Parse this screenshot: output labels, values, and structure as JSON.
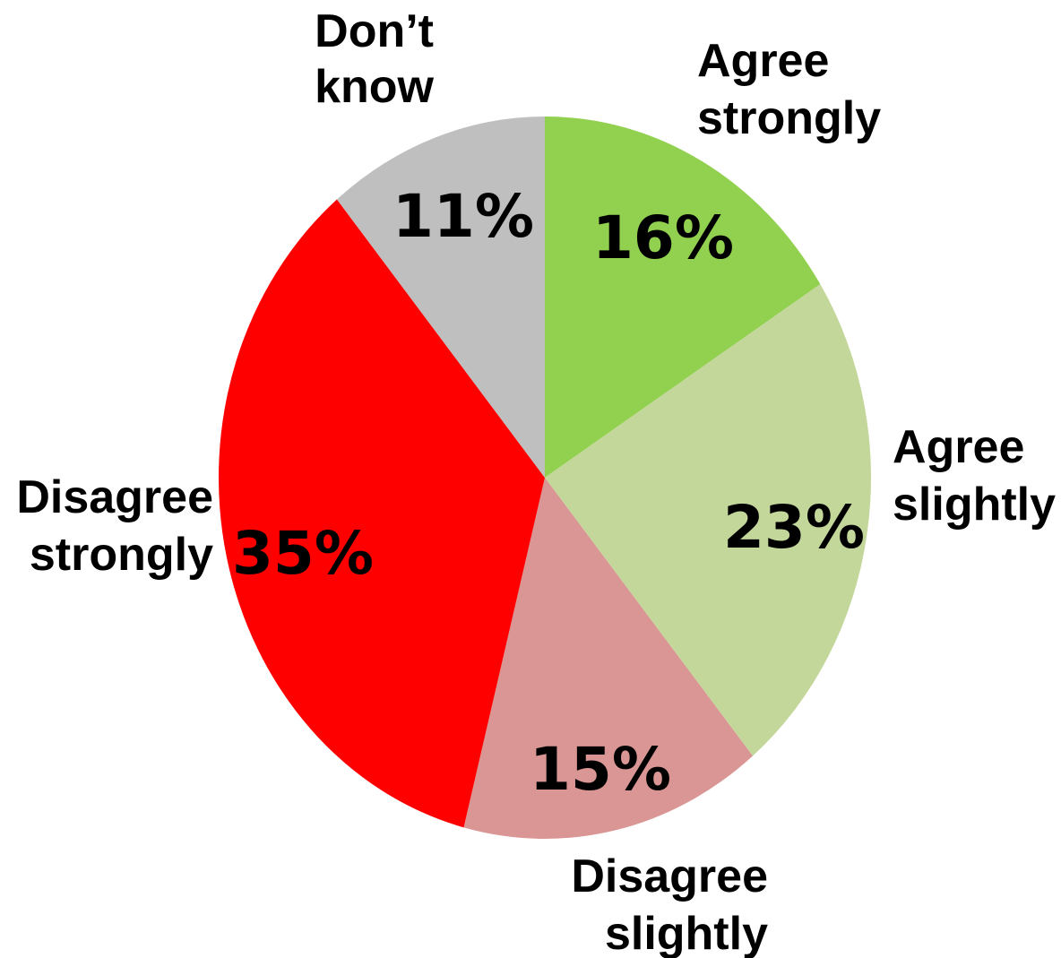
{
  "chart_data": {
    "type": "pie",
    "slices": [
      {
        "category": "Agree strongly",
        "label_lines": [
          "Agree",
          "strongly"
        ],
        "value": 16,
        "value_label": "16%",
        "color": "#92d050"
      },
      {
        "category": "Agree slightly",
        "label_lines": [
          "Agree",
          "slightly"
        ],
        "value": 23,
        "value_label": "23%",
        "color": "#c4d79b"
      },
      {
        "category": "Disagree slightly",
        "label_lines": [
          "Disagree",
          "slightly"
        ],
        "value": 15,
        "value_label": "15%",
        "color": "#da9694"
      },
      {
        "category": "Disagree strongly",
        "label_lines": [
          "Disagree",
          "strongly"
        ],
        "value": 35,
        "value_label": "35%",
        "color": "#ff0000"
      },
      {
        "category": "Don’t know",
        "label_lines": [
          "Don’t",
          "know"
        ],
        "value": 11,
        "value_label": "11%",
        "color": "#bfbfbf"
      }
    ],
    "start_angle": "12 o'clock",
    "direction": "clockwise",
    "legend": "none"
  }
}
